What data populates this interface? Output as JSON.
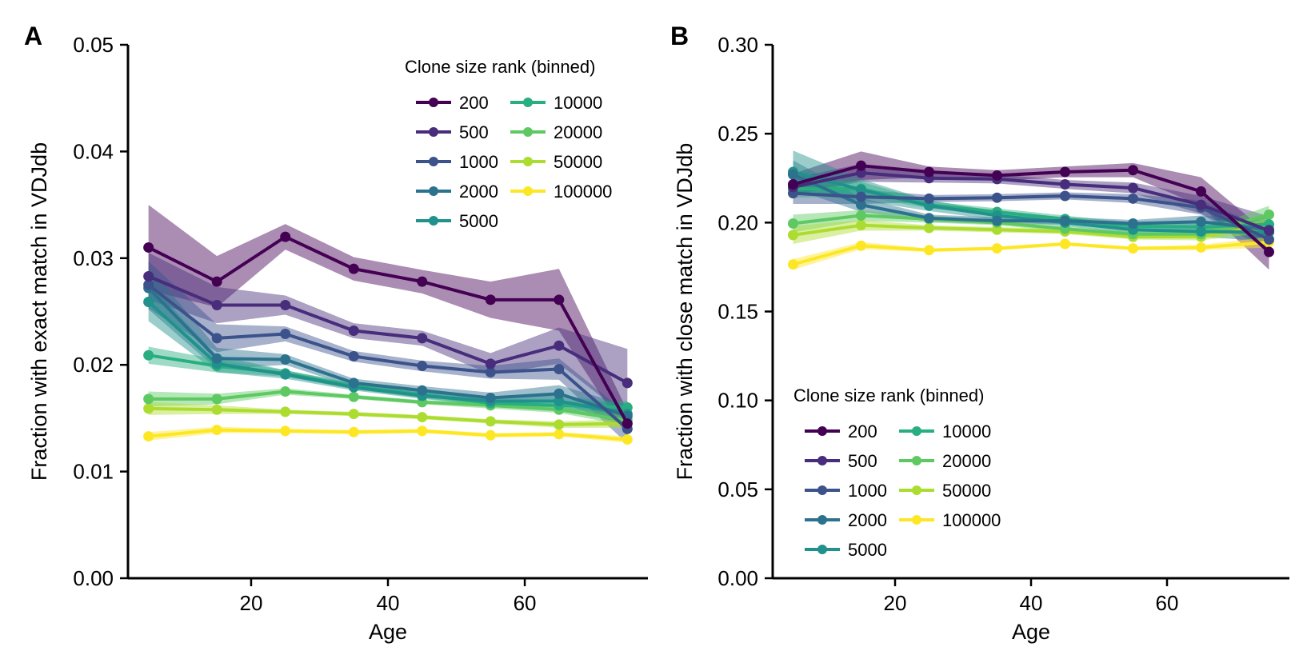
{
  "colors": {
    "200": "#440154",
    "500": "#472d7b",
    "1000": "#3b528b",
    "2000": "#2c728e",
    "5000": "#21918c",
    "10000": "#28ae80",
    "20000": "#5ec962",
    "50000": "#addc30",
    "100000": "#fde725"
  },
  "chart_data": [
    {
      "type": "line",
      "panel_label": "A",
      "xlabel": "Age",
      "ylabel": "Fraction with exact match in VDJdb",
      "xlim": [
        2,
        78
      ],
      "ylim": [
        0,
        0.05
      ],
      "xticks": [
        "20",
        "40",
        "60"
      ],
      "yticks": [
        "0.00",
        "0.01",
        "0.02",
        "0.03",
        "0.04",
        "0.05"
      ],
      "legend": {
        "title": "Clone size rank (binned)",
        "placement": "top-right",
        "columns": 2
      },
      "x": [
        5,
        15,
        25,
        35,
        45,
        55,
        65,
        75
      ],
      "series": [
        {
          "name": "200",
          "values": [
            0.031,
            0.0278,
            0.032,
            0.029,
            0.0278,
            0.0261,
            0.0261,
            0.0145
          ],
          "band": [
            0.004,
            0.0024,
            0.0012,
            0.0011,
            0.0011,
            0.0017,
            0.0029,
            0.0012
          ]
        },
        {
          "name": "500",
          "values": [
            0.0283,
            0.0256,
            0.0256,
            0.0232,
            0.0225,
            0.0201,
            0.0218,
            0.0183
          ],
          "band": [
            0.0022,
            0.0017,
            0.0009,
            0.0007,
            0.0007,
            0.001,
            0.0017,
            0.0032
          ]
        },
        {
          "name": "1000",
          "values": [
            0.0275,
            0.0225,
            0.0229,
            0.0208,
            0.0199,
            0.0193,
            0.0196,
            0.014
          ],
          "band": [
            0.0022,
            0.0013,
            0.0007,
            0.0005,
            0.0005,
            0.0006,
            0.001,
            0.0014
          ]
        },
        {
          "name": "2000",
          "values": [
            0.0272,
            0.0206,
            0.0205,
            0.0183,
            0.0176,
            0.0169,
            0.0173,
            0.0152
          ],
          "band": [
            0.002,
            0.001,
            0.0005,
            0.0004,
            0.0004,
            0.0005,
            0.0008,
            0.001
          ]
        },
        {
          "name": "5000",
          "values": [
            0.0259,
            0.0201,
            0.0191,
            0.0179,
            0.0171,
            0.0166,
            0.0166,
            0.0154
          ],
          "band": [
            0.0018,
            0.0008,
            0.0004,
            0.0003,
            0.0003,
            0.0004,
            0.0006,
            0.0008
          ]
        },
        {
          "name": "10000",
          "values": [
            0.0209,
            0.0199,
            0.0192,
            0.018,
            0.0172,
            0.0164,
            0.0162,
            0.016
          ],
          "band": [
            0.0008,
            0.0006,
            0.0003,
            0.0003,
            0.0003,
            0.0003,
            0.0004,
            0.0006
          ]
        },
        {
          "name": "20000",
          "values": [
            0.0168,
            0.0168,
            0.0175,
            0.017,
            0.0165,
            0.0162,
            0.0158,
            0.0148
          ],
          "band": [
            0.0007,
            0.0005,
            0.0003,
            0.0002,
            0.0002,
            0.0003,
            0.0003,
            0.0005
          ]
        },
        {
          "name": "50000",
          "values": [
            0.0159,
            0.0158,
            0.0156,
            0.0154,
            0.0151,
            0.0147,
            0.0144,
            0.0145
          ],
          "band": [
            0.0006,
            0.0004,
            0.0002,
            0.0002,
            0.0002,
            0.0002,
            0.0003,
            0.0004
          ]
        },
        {
          "name": "100000",
          "values": [
            0.0133,
            0.0139,
            0.0138,
            0.0137,
            0.0138,
            0.0134,
            0.0135,
            0.013
          ],
          "band": [
            0.0004,
            0.0003,
            0.0002,
            0.0002,
            0.0002,
            0.0002,
            0.0002,
            0.0003
          ]
        }
      ]
    },
    {
      "type": "line",
      "panel_label": "B",
      "xlabel": "Age",
      "ylabel": "Fraction with close match in VDJdb",
      "xlim": [
        2,
        78
      ],
      "ylim": [
        0,
        0.3
      ],
      "xticks": [
        "20",
        "40",
        "60"
      ],
      "yticks": [
        "0.00",
        "0.05",
        "0.10",
        "0.15",
        "0.20",
        "0.25",
        "0.30"
      ],
      "legend": {
        "title": "Clone size rank (binned)",
        "placement": "bottom-left",
        "columns": 2
      },
      "x": [
        5,
        15,
        25,
        35,
        45,
        55,
        65,
        75
      ],
      "series": [
        {
          "name": "200",
          "values": [
            0.2215,
            0.232,
            0.2285,
            0.2265,
            0.2285,
            0.2295,
            0.2175,
            0.1835
          ],
          "band": [
            0.006,
            0.008,
            0.003,
            0.003,
            0.003,
            0.004,
            0.008,
            0.01
          ]
        },
        {
          "name": "500",
          "values": [
            0.22,
            0.228,
            0.225,
            0.2245,
            0.2215,
            0.2195,
            0.21,
            0.1955
          ],
          "band": [
            0.005,
            0.005,
            0.0025,
            0.0025,
            0.0025,
            0.003,
            0.005,
            0.008
          ]
        },
        {
          "name": "1000",
          "values": [
            0.2165,
            0.2145,
            0.2135,
            0.214,
            0.215,
            0.2135,
            0.2085,
            0.1905
          ],
          "band": [
            0.006,
            0.004,
            0.002,
            0.002,
            0.002,
            0.0025,
            0.004,
            0.006
          ]
        },
        {
          "name": "2000",
          "values": [
            0.227,
            0.21,
            0.2025,
            0.201,
            0.201,
            0.1995,
            0.2005,
            0.196
          ],
          "band": [
            0.008,
            0.004,
            0.002,
            0.002,
            0.002,
            0.002,
            0.0035,
            0.005
          ]
        },
        {
          "name": "5000",
          "values": [
            0.2285,
            0.2185,
            0.2095,
            0.204,
            0.2,
            0.196,
            0.195,
            0.1945
          ],
          "band": [
            0.012,
            0.006,
            0.003,
            0.0025,
            0.002,
            0.002,
            0.003,
            0.005
          ]
        },
        {
          "name": "10000",
          "values": [
            0.219,
            0.219,
            0.21,
            0.206,
            0.202,
            0.198,
            0.1975,
            0.199
          ],
          "band": [
            0.005,
            0.004,
            0.002,
            0.002,
            0.002,
            0.002,
            0.003,
            0.004
          ]
        },
        {
          "name": "20000",
          "values": [
            0.1995,
            0.204,
            0.202,
            0.2,
            0.1965,
            0.1935,
            0.1935,
            0.2045
          ],
          "band": [
            0.005,
            0.003,
            0.002,
            0.0015,
            0.0015,
            0.0015,
            0.002,
            0.005
          ]
        },
        {
          "name": "50000",
          "values": [
            0.193,
            0.1985,
            0.197,
            0.196,
            0.195,
            0.192,
            0.192,
            0.1985
          ],
          "band": [
            0.005,
            0.003,
            0.0015,
            0.0015,
            0.0015,
            0.0015,
            0.002,
            0.004
          ]
        },
        {
          "name": "100000",
          "values": [
            0.1765,
            0.187,
            0.1845,
            0.1855,
            0.188,
            0.1855,
            0.186,
            0.189
          ],
          "band": [
            0.003,
            0.002,
            0.001,
            0.001,
            0.001,
            0.001,
            0.0015,
            0.003
          ]
        }
      ]
    }
  ]
}
